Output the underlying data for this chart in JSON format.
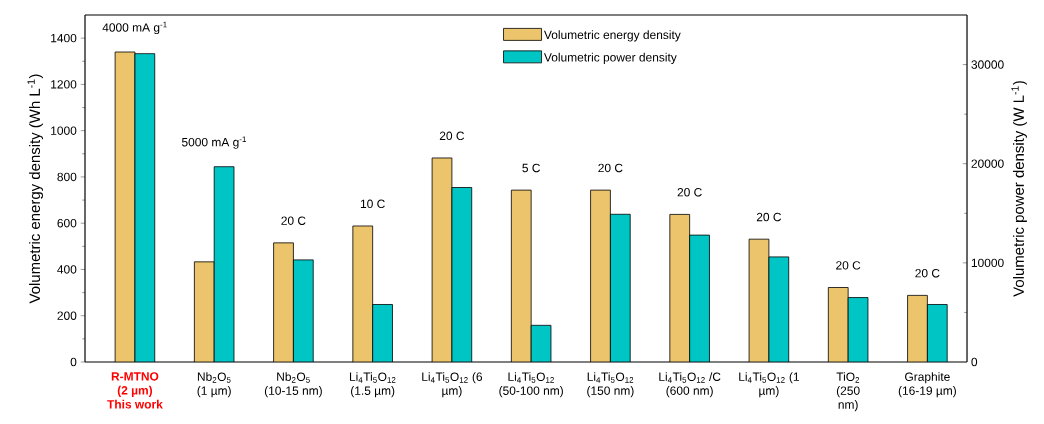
{
  "chart_data": {
    "type": "bar",
    "categories": [
      "R-MTNO (2 µm) This work",
      "Nb$_{2}$O$_{5}$ (1 µm)",
      "Nb$_{2}$O$_{5}$ (10-15 nm)",
      "Li$_{4}$Ti$_{5}$O$_{12}$ (1.5 µm)",
      "Li$_{4}$Ti$_{5}$O$_{12}$ (6 µm)",
      "Li$_{4}$Ti$_{5}$O$_{12}$ (50-100 nm)",
      "Li$_{4}$Ti$_{5}$O$_{12}$ (150 nm)",
      "Li$_{4}$Ti$_{5}$O$_{12}$ /C (600 nm)",
      "Li$_{4}$Ti$_{5}$O$_{12}$ (1 µm)",
      "TiO$_{2}$ (250 nm)",
      "Graphite (16-19 µm)"
    ],
    "series": [
      {
        "name": "Volumetric energy density",
        "color": "#ebc46b",
        "values": [
          1340,
          433,
          515,
          588,
          882,
          743,
          743,
          638,
          531,
          322,
          288
        ]
      },
      {
        "name": "Volumetric power density",
        "color": "#00c5c5",
        "axis": "y2",
        "values": [
          31100,
          19700,
          10300,
          5800,
          17600,
          3700,
          14900,
          12800,
          10600,
          6500,
          5800
        ]
      }
    ],
    "ylabel": "Volumetric energy density (Wh L$^{-1}$)",
    "y2label": "Volumetric power density (W L$^{-1}$)",
    "ylim": [
      0,
      1500
    ],
    "yticks": [
      0,
      200,
      400,
      600,
      800,
      1000,
      1200,
      1400
    ],
    "y2lim": [
      0,
      35000
    ],
    "y2ticks": [
      0,
      10000,
      20000,
      30000
    ],
    "legend": "top right",
    "grid": false,
    "annotations": [
      "4000 mA g$^{-1}$",
      "5000 mA g$^{-1}$",
      "20 C",
      "10 C",
      "20 C",
      "5 C",
      "20 C",
      "20 C",
      "20 C",
      "20 C",
      "20 C"
    ]
  }
}
